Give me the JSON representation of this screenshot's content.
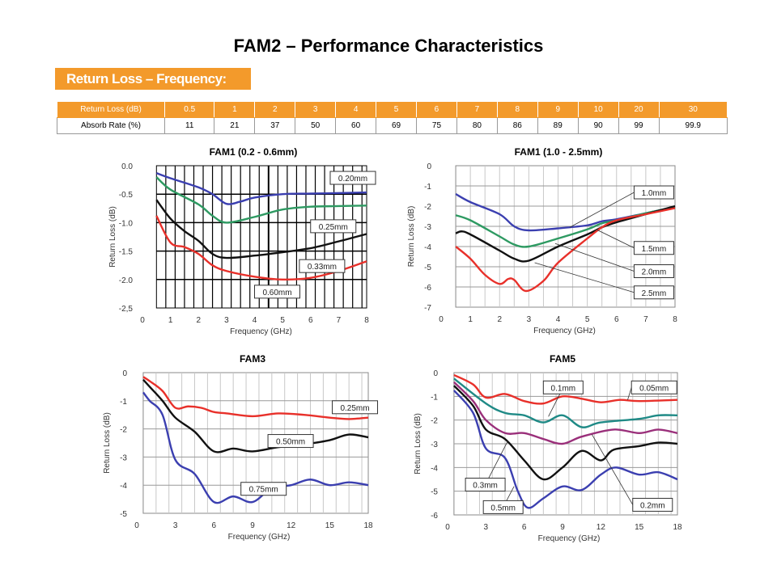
{
  "title": "FAM2 – Performance Characteristics",
  "banner": "Return Loss – Frequency:",
  "table": {
    "header_label": "Return Loss (dB)",
    "row_label": "Absorb Rate (%)",
    "return_loss": [
      "0.5",
      "1",
      "2",
      "3",
      "4",
      "5",
      "6",
      "7",
      "8",
      "9",
      "10",
      "20",
      "30"
    ],
    "absorb_rate": [
      "11",
      "21",
      "37",
      "50",
      "60",
      "69",
      "75",
      "80",
      "86",
      "89",
      "90",
      "99",
      "99.9"
    ],
    "header_color": "#f39a2b"
  },
  "chart_data": [
    {
      "type": "line",
      "title": "FAM1 (0.2 - 0.6mm)",
      "xlabel": "Frequency (GHz)",
      "ylabel": "Return Loss (dB)",
      "xlim": [
        0,
        8
      ],
      "ylim": [
        -2.5,
        0
      ],
      "xticks": [
        "0",
        "1",
        "2",
        "3",
        "4",
        "5",
        "6",
        "7",
        "8"
      ],
      "yticks": [
        "0.0",
        "-0.5",
        "-1.0",
        "-1.5",
        "-2.0",
        "-2,5"
      ],
      "grid": "dense black",
      "series": [
        {
          "name": "0.20mm",
          "color": "#3b3fb0",
          "points": [
            [
              0.5,
              -0.13
            ],
            [
              1,
              -0.22
            ],
            [
              2,
              -0.38
            ],
            [
              2.5,
              -0.5
            ],
            [
              3,
              -0.67
            ],
            [
              3.5,
              -0.63
            ],
            [
              4,
              -0.56
            ],
            [
              5,
              -0.5
            ],
            [
              6,
              -0.49
            ],
            [
              7,
              -0.48
            ],
            [
              8,
              -0.47
            ]
          ]
        },
        {
          "name": "0.25mm",
          "color": "#2e9a62",
          "points": [
            [
              0.5,
              -0.2
            ],
            [
              1,
              -0.42
            ],
            [
              2,
              -0.68
            ],
            [
              2.5,
              -0.88
            ],
            [
              3,
              -1.0
            ],
            [
              4,
              -0.9
            ],
            [
              5,
              -0.77
            ],
            [
              6,
              -0.72
            ],
            [
              7,
              -0.71
            ],
            [
              8,
              -0.7
            ]
          ]
        },
        {
          "name": "0.33mm",
          "color": "#111111",
          "points": [
            [
              0.5,
              -0.6
            ],
            [
              1,
              -0.93
            ],
            [
              1.5,
              -1.15
            ],
            [
              2,
              -1.32
            ],
            [
              2.5,
              -1.55
            ],
            [
              3,
              -1.62
            ],
            [
              4,
              -1.58
            ],
            [
              5,
              -1.52
            ],
            [
              6,
              -1.45
            ],
            [
              7,
              -1.33
            ],
            [
              8,
              -1.2
            ]
          ]
        },
        {
          "name": "0.60mm",
          "color": "#e8302a",
          "points": [
            [
              0.5,
              -0.88
            ],
            [
              1,
              -1.35
            ],
            [
              1.5,
              -1.43
            ],
            [
              2,
              -1.55
            ],
            [
              2.5,
              -1.75
            ],
            [
              3,
              -1.85
            ],
            [
              4,
              -1.95
            ],
            [
              5,
              -2.0
            ],
            [
              6,
              -1.97
            ],
            [
              7,
              -1.85
            ],
            [
              8,
              -1.68
            ]
          ]
        }
      ],
      "annotations": [
        {
          "text": "0.20mm",
          "x": 6.7,
          "y": -0.1
        },
        {
          "text": "0.25mm",
          "x": 6.0,
          "y": -0.95
        },
        {
          "text": "0.33mm",
          "x": 5.6,
          "y": -1.65
        },
        {
          "text": "0.60mm",
          "x": 4.0,
          "y": -2.1
        }
      ]
    },
    {
      "type": "line",
      "title": "FAM1 (1.0 - 2.5mm)",
      "xlabel": "Frequency (GHz)",
      "ylabel": "Return Loss (dB)",
      "xlim": [
        0,
        8
      ],
      "ylim": [
        -7,
        0
      ],
      "xticks": [
        "0",
        "1",
        "2",
        "3",
        "4",
        "5",
        "6",
        "7",
        "8"
      ],
      "yticks": [
        "0",
        "-1",
        "-2",
        "-3",
        "-4",
        "-5",
        "-6",
        "-7"
      ],
      "grid": "grey",
      "series": [
        {
          "name": "1.0mm",
          "color": "#3b3fb0",
          "points": [
            [
              0.5,
              -1.4
            ],
            [
              1,
              -1.8
            ],
            [
              2,
              -2.4
            ],
            [
              2.5,
              -3.0
            ],
            [
              3,
              -3.2
            ],
            [
              4,
              -3.1
            ],
            [
              5,
              -2.95
            ],
            [
              5.5,
              -2.75
            ],
            [
              6,
              -2.65
            ],
            [
              7,
              -2.35
            ],
            [
              8,
              -2.05
            ]
          ]
        },
        {
          "name": "1.5mm",
          "color": "#2e9a62",
          "points": [
            [
              0.5,
              -2.45
            ],
            [
              1,
              -2.7
            ],
            [
              2,
              -3.5
            ],
            [
              2.5,
              -3.9
            ],
            [
              3,
              -4.0
            ],
            [
              4,
              -3.6
            ],
            [
              5,
              -3.15
            ],
            [
              5.5,
              -2.85
            ],
            [
              6,
              -2.7
            ],
            [
              7,
              -2.35
            ],
            [
              8,
              -2.05
            ]
          ]
        },
        {
          "name": "2.0mm",
          "color": "#111111",
          "points": [
            [
              0.5,
              -3.35
            ],
            [
              0.7,
              -3.25
            ],
            [
              1,
              -3.4
            ],
            [
              2,
              -4.2
            ],
            [
              2.5,
              -4.6
            ],
            [
              3,
              -4.7
            ],
            [
              4,
              -4.0
            ],
            [
              5,
              -3.4
            ],
            [
              5.5,
              -3.05
            ],
            [
              6,
              -2.8
            ],
            [
              7,
              -2.4
            ],
            [
              8,
              -2.0
            ]
          ]
        },
        {
          "name": "2.5mm",
          "color": "#e8302a",
          "points": [
            [
              0.5,
              -4.0
            ],
            [
              1,
              -4.6
            ],
            [
              1.5,
              -5.4
            ],
            [
              2,
              -5.85
            ],
            [
              2.3,
              -5.6
            ],
            [
              2.5,
              -5.65
            ],
            [
              2.9,
              -6.2
            ],
            [
              3.5,
              -5.7
            ],
            [
              4,
              -4.8
            ],
            [
              5,
              -3.6
            ],
            [
              5.5,
              -3.05
            ],
            [
              6,
              -2.7
            ],
            [
              7,
              -2.4
            ],
            [
              8,
              -2.1
            ]
          ]
        }
      ],
      "annotations": [
        {
          "text": "1.0mm",
          "x": 6.6,
          "y": -1.0,
          "target": [
            4.4,
            -3.05
          ]
        },
        {
          "text": "1.5mm",
          "x": 6.6,
          "y": -3.75,
          "target": [
            5.3,
            -3.15
          ]
        },
        {
          "text": "2.0mm",
          "x": 6.6,
          "y": -4.9,
          "target": [
            3.9,
            -3.85
          ]
        },
        {
          "text": "2.5mm",
          "x": 6.6,
          "y": -5.95,
          "target": [
            3.2,
            -4.8
          ]
        }
      ]
    },
    {
      "type": "line",
      "title": "FAM3",
      "xlabel": "Frequency (GHz)",
      "ylabel": "Return Loss (dB)",
      "xlim": [
        0,
        18
      ],
      "ylim": [
        -5,
        0
      ],
      "xticks": [
        "0",
        "3",
        "6",
        "9",
        "12",
        "15",
        "18"
      ],
      "yticks": [
        "0",
        "-1",
        "-2",
        "-3",
        "-4",
        "-5"
      ],
      "grid": "grey",
      "series": [
        {
          "name": "0.25mm",
          "color": "#e8302a",
          "points": [
            [
              0.5,
              -0.15
            ],
            [
              1,
              -0.3
            ],
            [
              2,
              -0.65
            ],
            [
              3,
              -1.25
            ],
            [
              4,
              -1.2
            ],
            [
              5,
              -1.25
            ],
            [
              6,
              -1.4
            ],
            [
              7,
              -1.45
            ],
            [
              9,
              -1.55
            ],
            [
              11,
              -1.45
            ],
            [
              13,
              -1.5
            ],
            [
              15,
              -1.6
            ],
            [
              16.5,
              -1.65
            ],
            [
              18,
              -1.6
            ]
          ]
        },
        {
          "name": "0.50mm",
          "color": "#111111",
          "points": [
            [
              0.5,
              -0.25
            ],
            [
              1,
              -0.5
            ],
            [
              2,
              -1.0
            ],
            [
              3,
              -1.6
            ],
            [
              4.5,
              -2.1
            ],
            [
              6,
              -2.8
            ],
            [
              7.5,
              -2.7
            ],
            [
              9,
              -2.8
            ],
            [
              11,
              -2.65
            ],
            [
              13,
              -2.55
            ],
            [
              15,
              -2.4
            ],
            [
              16.5,
              -2.2
            ],
            [
              18,
              -2.3
            ]
          ]
        },
        {
          "name": "0.75mm",
          "color": "#3b3fb0",
          "points": [
            [
              0.5,
              -0.7
            ],
            [
              1,
              -1.0
            ],
            [
              2,
              -1.5
            ],
            [
              3,
              -3.1
            ],
            [
              4.5,
              -3.6
            ],
            [
              6,
              -4.6
            ],
            [
              7.5,
              -4.4
            ],
            [
              9,
              -4.6
            ],
            [
              10.5,
              -4.1
            ],
            [
              12,
              -4.0
            ],
            [
              13.5,
              -3.8
            ],
            [
              15,
              -4.0
            ],
            [
              16.5,
              -3.9
            ],
            [
              18,
              -4.0
            ]
          ]
        }
      ],
      "annotations": [
        {
          "text": "0.25mm",
          "x": 15.2,
          "y": -1.0
        },
        {
          "text": "0.50mm",
          "x": 10.2,
          "y": -2.2
        },
        {
          "text": "0.75mm",
          "x": 8.1,
          "y": -3.9
        }
      ]
    },
    {
      "type": "line",
      "title": "FAM5",
      "xlabel": "Frequency (GHz)",
      "ylabel": "Return Loss (dB)",
      "xlim": [
        0,
        18
      ],
      "ylim": [
        -6,
        0
      ],
      "xticks": [
        "0",
        "3",
        "6",
        "9",
        "12",
        "15",
        "18"
      ],
      "yticks": [
        "0",
        "-1",
        "-2",
        "-3",
        "-4",
        "-5",
        "-6"
      ],
      "grid": "grey",
      "series": [
        {
          "name": "0.05mm",
          "color": "#e8302a",
          "points": [
            [
              0.5,
              -0.1
            ],
            [
              2,
              -0.5
            ],
            [
              3,
              -1.05
            ],
            [
              4.5,
              -0.9
            ],
            [
              6,
              -1.2
            ],
            [
              7.5,
              -1.3
            ],
            [
              9,
              -1.0
            ],
            [
              10.5,
              -1.1
            ],
            [
              12,
              -1.25
            ],
            [
              13.5,
              -1.15
            ],
            [
              15,
              -1.2
            ],
            [
              18,
              -1.15
            ]
          ]
        },
        {
          "name": "0.1mm",
          "color": "#1f8a86",
          "points": [
            [
              0.5,
              -0.25
            ],
            [
              3,
              -1.3
            ],
            [
              4.5,
              -1.7
            ],
            [
              6,
              -1.8
            ],
            [
              7.5,
              -2.1
            ],
            [
              9,
              -1.8
            ],
            [
              10.5,
              -2.3
            ],
            [
              12,
              -2.1
            ],
            [
              15,
              -1.95
            ],
            [
              16.5,
              -1.8
            ],
            [
              18,
              -1.8
            ]
          ]
        },
        {
          "name": "0.2mm",
          "color": "#9a2f7a",
          "points": [
            [
              0.5,
              -0.4
            ],
            [
              2,
              -1.2
            ],
            [
              3,
              -2.0
            ],
            [
              4.5,
              -2.55
            ],
            [
              6,
              -2.55
            ],
            [
              7.5,
              -2.8
            ],
            [
              9,
              -3.0
            ],
            [
              10.5,
              -2.7
            ],
            [
              13,
              -2.4
            ],
            [
              15,
              -2.55
            ],
            [
              16.5,
              -2.4
            ],
            [
              18,
              -2.55
            ]
          ]
        },
        {
          "name": "0.3mm",
          "color": "#111111",
          "points": [
            [
              0.5,
              -0.55
            ],
            [
              2,
              -1.4
            ],
            [
              3,
              -2.4
            ],
            [
              4.5,
              -2.8
            ],
            [
              6,
              -3.7
            ],
            [
              7.5,
              -4.5
            ],
            [
              9,
              -4.0
            ],
            [
              10.5,
              -3.3
            ],
            [
              12,
              -3.7
            ],
            [
              13,
              -3.25
            ],
            [
              15,
              -3.1
            ],
            [
              16.5,
              -2.95
            ],
            [
              18,
              -3.0
            ]
          ]
        },
        {
          "name": "0.5mm",
          "color": "#3b3fb0",
          "points": [
            [
              0.5,
              -0.75
            ],
            [
              2,
              -1.7
            ],
            [
              3,
              -3.2
            ],
            [
              4.5,
              -3.6
            ],
            [
              5.5,
              -5.0
            ],
            [
              6.3,
              -5.7
            ],
            [
              7.5,
              -5.3
            ],
            [
              9,
              -4.8
            ],
            [
              10.5,
              -4.95
            ],
            [
              12,
              -4.3
            ],
            [
              13.2,
              -4.0
            ],
            [
              15,
              -4.3
            ],
            [
              16.5,
              -4.2
            ],
            [
              18,
              -4.5
            ]
          ]
        }
      ],
      "annotations": [
        {
          "text": "0.1mm",
          "x": 7.5,
          "y": -0.35,
          "target": [
            7.9,
            -1.85
          ]
        },
        {
          "text": "0.05mm",
          "x": 14.4,
          "y": -0.35,
          "target": [
            14.1,
            -1.15
          ]
        },
        {
          "text": "0.3mm",
          "x": 1.4,
          "y": -4.45,
          "target": [
            4.7,
            -2.9
          ]
        },
        {
          "text": "0.5mm",
          "x": 2.8,
          "y": -5.4,
          "target": [
            5.2,
            -4.8
          ]
        },
        {
          "text": "0.2mm",
          "x": 14.5,
          "y": -5.3,
          "target": [
            11.3,
            -2.6
          ]
        }
      ]
    }
  ]
}
